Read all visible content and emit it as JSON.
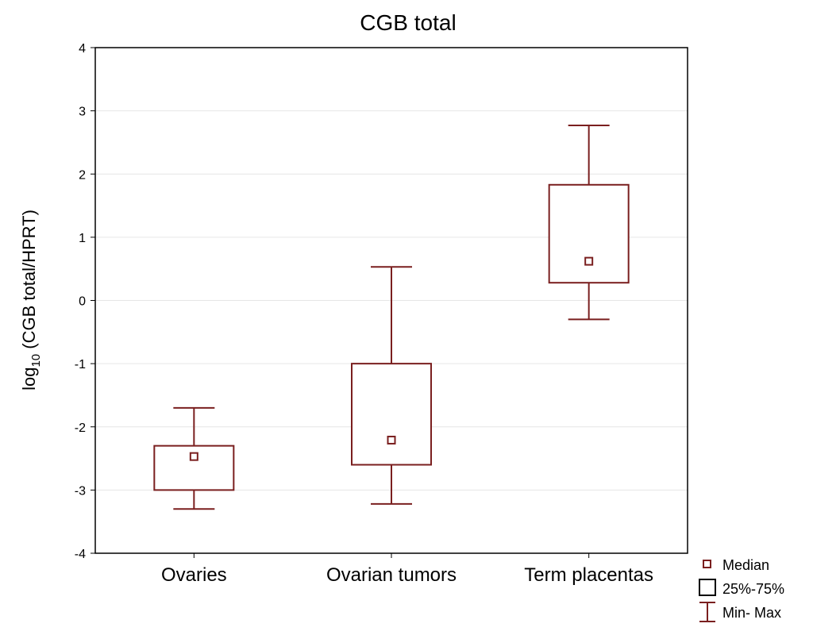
{
  "chart_data": {
    "type": "box",
    "title": "CGB total",
    "ylabel": {
      "prefix": "log",
      "subscript": "10",
      "suffix": " (CGB total/HPRT)"
    },
    "xlabel": "",
    "ylim": [
      -4,
      4
    ],
    "yticks": [
      4,
      3,
      2,
      1,
      0,
      -1,
      -2,
      -3,
      -4
    ],
    "ytick_labels": [
      "4",
      "3",
      "2",
      "1",
      "0",
      "-1",
      "-2",
      "-3",
      "-4"
    ],
    "grid": true,
    "categories": [
      "Ovaries",
      "Ovarian tumors",
      "Term placentas"
    ],
    "series": [
      {
        "name": "Ovaries",
        "min": -3.3,
        "q1": -3.0,
        "median": -2.47,
        "q3": -2.3,
        "max": -1.7
      },
      {
        "name": "Ovarian tumors",
        "min": -3.22,
        "q1": -2.6,
        "median": -2.21,
        "q3": -1.0,
        "max": 0.53
      },
      {
        "name": "Term placentas",
        "min": -0.3,
        "q1": 0.28,
        "median": 0.62,
        "q3": 1.83,
        "max": 2.77
      }
    ],
    "legend": {
      "position": "bottom-right",
      "items": [
        {
          "label": "Median",
          "symbol": "median"
        },
        {
          "label": "25%-75%",
          "symbol": "box"
        },
        {
          "label": "Min- Max",
          "symbol": "whisker"
        }
      ]
    },
    "colors": {
      "series": "#7a1f1f",
      "axis": "#000000",
      "grid": "#e6e6e6"
    }
  }
}
